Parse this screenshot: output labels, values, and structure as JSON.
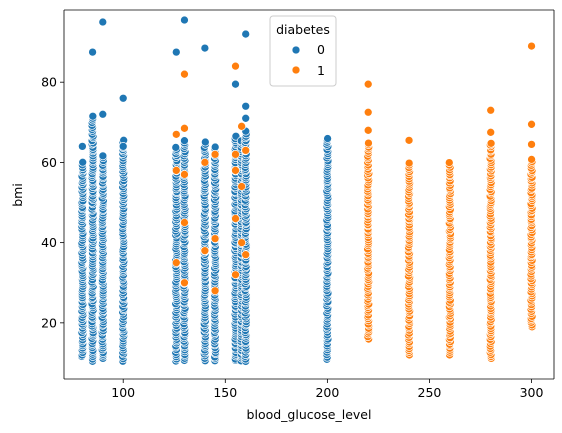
{
  "chart_data": {
    "type": "scatter",
    "xlabel": "blood_glucose_level",
    "ylabel": "bmi",
    "xlim": [
      71,
      311
    ],
    "ylim": [
      6,
      98
    ],
    "xticks": [
      100,
      150,
      200,
      250,
      300
    ],
    "yticks": [
      20,
      40,
      60,
      80
    ],
    "grid": false,
    "legend": {
      "title": "diabetes",
      "placement": "top-center",
      "entries": [
        {
          "label": "0",
          "color": "#1f77b4"
        },
        {
          "label": "1",
          "color": "#ff7f0e"
        }
      ]
    },
    "series": [
      {
        "label": "0",
        "color": "#1f77b4",
        "columns": [
          {
            "x": 80,
            "ymin": 11.5,
            "ymax": 60
          },
          {
            "x": 85,
            "ymin": 10.5,
            "ymax": 72
          },
          {
            "x": 90,
            "ymin": 11,
            "ymax": 62
          },
          {
            "x": 100,
            "ymin": 10.5,
            "ymax": 66
          },
          {
            "x": 126,
            "ymin": 10.5,
            "ymax": 64
          },
          {
            "x": 130,
            "ymin": 10.5,
            "ymax": 66
          },
          {
            "x": 140,
            "ymin": 10.5,
            "ymax": 65
          },
          {
            "x": 145,
            "ymin": 10.5,
            "ymax": 64
          },
          {
            "x": 155,
            "ymin": 10.5,
            "ymax": 67
          },
          {
            "x": 158,
            "ymin": 10.5,
            "ymax": 66
          },
          {
            "x": 160,
            "ymin": 10.5,
            "ymax": 68
          },
          {
            "x": 200,
            "ymin": 11,
            "ymax": 66
          }
        ],
        "points": [
          {
            "x": 80,
            "y": 64
          },
          {
            "x": 85,
            "y": 87.5
          },
          {
            "x": 90,
            "y": 95
          },
          {
            "x": 90,
            "y": 72
          },
          {
            "x": 100,
            "y": 76
          },
          {
            "x": 100,
            "y": 64
          },
          {
            "x": 126,
            "y": 87.5
          },
          {
            "x": 130,
            "y": 95.5
          },
          {
            "x": 140,
            "y": 88.5
          },
          {
            "x": 155,
            "y": 79.5
          },
          {
            "x": 160,
            "y": 92
          },
          {
            "x": 160,
            "y": 74
          },
          {
            "x": 160,
            "y": 71
          }
        ]
      },
      {
        "label": "1",
        "color": "#ff7f0e",
        "columns": [
          {
            "x": 220,
            "ymin": 16,
            "ymax": 65
          },
          {
            "x": 240,
            "ymin": 12,
            "ymax": 60
          },
          {
            "x": 260,
            "ymin": 12,
            "ymax": 60
          },
          {
            "x": 280,
            "ymin": 11,
            "ymax": 65
          },
          {
            "x": 300,
            "ymin": 19,
            "ymax": 61
          }
        ],
        "points": [
          {
            "x": 220,
            "y": 79.5
          },
          {
            "x": 220,
            "y": 72.5
          },
          {
            "x": 220,
            "y": 68
          },
          {
            "x": 240,
            "y": 65.5
          },
          {
            "x": 280,
            "y": 73
          },
          {
            "x": 280,
            "y": 67.5
          },
          {
            "x": 300,
            "y": 89
          },
          {
            "x": 300,
            "y": 69.5
          },
          {
            "x": 300,
            "y": 64.5
          },
          {
            "x": 130,
            "y": 82
          },
          {
            "x": 130,
            "y": 68.5
          },
          {
            "x": 130,
            "y": 57
          },
          {
            "x": 130,
            "y": 45
          },
          {
            "x": 130,
            "y": 30
          },
          {
            "x": 126,
            "y": 67
          },
          {
            "x": 126,
            "y": 58
          },
          {
            "x": 126,
            "y": 35
          },
          {
            "x": 140,
            "y": 60
          },
          {
            "x": 140,
            "y": 38
          },
          {
            "x": 145,
            "y": 62
          },
          {
            "x": 145,
            "y": 41
          },
          {
            "x": 145,
            "y": 28
          },
          {
            "x": 155,
            "y": 84
          },
          {
            "x": 155,
            "y": 62
          },
          {
            "x": 155,
            "y": 58
          },
          {
            "x": 155,
            "y": 46
          },
          {
            "x": 155,
            "y": 32
          },
          {
            "x": 158,
            "y": 69
          },
          {
            "x": 158,
            "y": 54
          },
          {
            "x": 158,
            "y": 40
          },
          {
            "x": 160,
            "y": 63
          },
          {
            "x": 160,
            "y": 37
          }
        ]
      }
    ]
  }
}
